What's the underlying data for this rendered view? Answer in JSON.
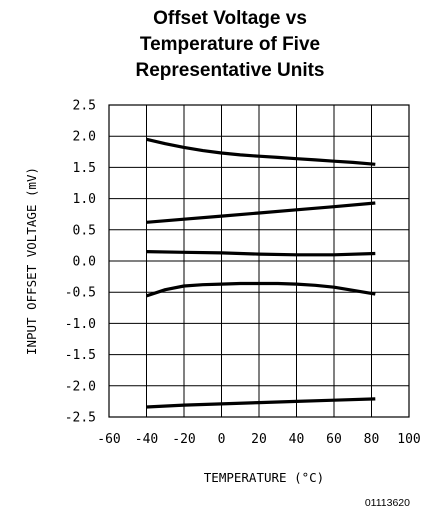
{
  "chart_data": {
    "type": "line",
    "title_lines": [
      "Offset Voltage vs",
      "Temperature of Five",
      "Representative Units"
    ],
    "xlabel": "TEMPERATURE (°C)",
    "ylabel": "INPUT OFFSET VOLTAGE (mV)",
    "xlim": [
      -60,
      100
    ],
    "ylim": [
      -2.5,
      2.5
    ],
    "x_ticks": [
      -60,
      -40,
      -20,
      0,
      20,
      40,
      60,
      80,
      100
    ],
    "x_tick_labels": [
      "-60",
      "-40",
      "-20",
      "0",
      "20",
      "40",
      "60",
      "80",
      "100"
    ],
    "y_ticks": [
      2.5,
      2.0,
      1.5,
      1.0,
      0.5,
      0.0,
      -0.5,
      -1.0,
      -1.5,
      -2.0,
      -2.5
    ],
    "y_tick_labels": [
      "2.5",
      "2.0",
      "1.5",
      "1.0",
      "0.5",
      "0.0",
      "-0.5",
      "-1.0",
      "-1.5",
      "-2.0",
      "-2.5"
    ],
    "grid": true,
    "figure_id": "01113620",
    "series": [
      {
        "x": [
          -40,
          -30,
          -20,
          -10,
          0,
          10,
          20,
          30,
          40,
          50,
          60,
          70,
          82
        ],
        "y": [
          1.95,
          1.88,
          1.82,
          1.77,
          1.73,
          1.7,
          1.68,
          1.66,
          1.64,
          1.62,
          1.6,
          1.58,
          1.55
        ]
      },
      {
        "x": [
          -40,
          -20,
          0,
          20,
          40,
          60,
          82
        ],
        "y": [
          0.62,
          0.67,
          0.72,
          0.77,
          0.82,
          0.87,
          0.93
        ]
      },
      {
        "x": [
          -40,
          -20,
          0,
          20,
          40,
          60,
          82
        ],
        "y": [
          0.15,
          0.14,
          0.13,
          0.11,
          0.1,
          0.1,
          0.12
        ]
      },
      {
        "x": [
          -40,
          -30,
          -20,
          -10,
          0,
          10,
          20,
          30,
          40,
          50,
          60,
          70,
          82
        ],
        "y": [
          -0.56,
          -0.46,
          -0.4,
          -0.38,
          -0.37,
          -0.36,
          -0.36,
          -0.36,
          -0.37,
          -0.39,
          -0.42,
          -0.47,
          -0.53
        ]
      },
      {
        "x": [
          -40,
          -20,
          0,
          20,
          40,
          60,
          82
        ],
        "y": [
          -2.34,
          -2.31,
          -2.29,
          -2.27,
          -2.25,
          -2.23,
          -2.21
        ]
      }
    ]
  }
}
